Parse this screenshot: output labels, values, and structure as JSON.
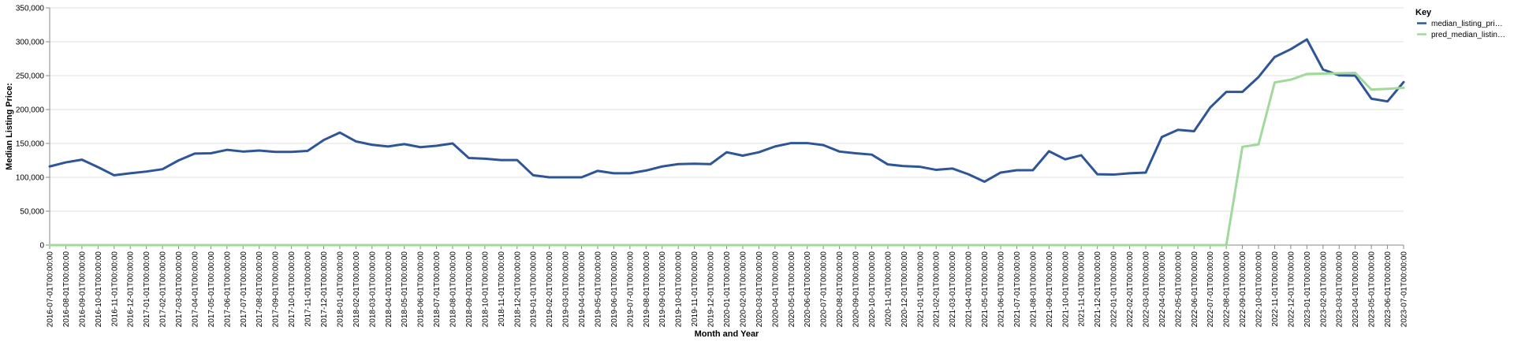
{
  "chart_data": {
    "type": "line",
    "xlabel": "Month and Year",
    "ylabel": "Median Listing Price:",
    "ylim": [
      0,
      350000
    ],
    "yticks": [
      "0",
      "50,000",
      "100,000",
      "150,000",
      "200,000",
      "250,000",
      "300,000",
      "350,000"
    ],
    "grid": "horizontal",
    "legend": {
      "title": "Key",
      "placement": "top-right",
      "items": [
        "median_listing_pri…",
        "pred_median_listin…"
      ]
    },
    "x": [
      "2016-07-01T00:00:00",
      "2016-08-01T00:00:00",
      "2016-09-01T00:00:00",
      "2016-10-01T00:00:00",
      "2016-11-01T00:00:00",
      "2016-12-01T00:00:00",
      "2017-01-01T00:00:00",
      "2017-02-01T00:00:00",
      "2017-03-01T00:00:00",
      "2017-04-01T00:00:00",
      "2017-05-01T00:00:00",
      "2017-06-01T00:00:00",
      "2017-07-01T00:00:00",
      "2017-08-01T00:00:00",
      "2017-09-01T00:00:00",
      "2017-10-01T00:00:00",
      "2017-11-01T00:00:00",
      "2017-12-01T00:00:00",
      "2018-01-01T00:00:00",
      "2018-02-01T00:00:00",
      "2018-03-01T00:00:00",
      "2018-04-01T00:00:00",
      "2018-05-01T00:00:00",
      "2018-06-01T00:00:00",
      "2018-07-01T00:00:00",
      "2018-08-01T00:00:00",
      "2018-09-01T00:00:00",
      "2018-10-01T00:00:00",
      "2018-11-01T00:00:00",
      "2018-12-01T00:00:00",
      "2019-01-01T00:00:00",
      "2019-02-01T00:00:00",
      "2019-03-01T00:00:00",
      "2019-04-01T00:00:00",
      "2019-05-01T00:00:00",
      "2019-06-01T00:00:00",
      "2019-07-01T00:00:00",
      "2019-08-01T00:00:00",
      "2019-09-01T00:00:00",
      "2019-10-01T00:00:00",
      "2019-11-01T00:00:00",
      "2019-12-01T00:00:00",
      "2020-01-01T00:00:00",
      "2020-02-01T00:00:00",
      "2020-03-01T00:00:00",
      "2020-04-01T00:00:00",
      "2020-05-01T00:00:00",
      "2020-06-01T00:00:00",
      "2020-07-01T00:00:00",
      "2020-08-01T00:00:00",
      "2020-09-01T00:00:00",
      "2020-10-01T00:00:00",
      "2020-11-01T00:00:00",
      "2020-12-01T00:00:00",
      "2021-01-01T00:00:00",
      "2021-02-01T00:00:00",
      "2021-03-01T00:00:00",
      "2021-04-01T00:00:00",
      "2021-05-01T00:00:00",
      "2021-06-01T00:00:00",
      "2021-07-01T00:00:00",
      "2021-08-01T00:00:00",
      "2021-09-01T00:00:00",
      "2021-10-01T00:00:00",
      "2021-11-01T00:00:00",
      "2021-12-01T00:00:00",
      "2022-01-01T00:00:00",
      "2022-02-01T00:00:00",
      "2022-03-01T00:00:00",
      "2022-04-01T00:00:00",
      "2022-05-01T00:00:00",
      "2022-06-01T00:00:00",
      "2022-07-01T00:00:00",
      "2022-08-01T00:00:00",
      "2022-09-01T00:00:00",
      "2022-10-01T00:00:00",
      "2022-11-01T00:00:00",
      "2022-12-01T00:00:00",
      "2023-01-01T00:00:00",
      "2023-02-01T00:00:00",
      "2023-03-01T00:00:00",
      "2023-04-01T00:00:00",
      "2023-05-01T00:00:00",
      "2023-06-01T00:00:00",
      "2023-07-01T00:00:00"
    ],
    "series": [
      {
        "name": "median_listing_pri…",
        "color": "#2e5597",
        "values": [
          116000,
          122000,
          126000,
          115000,
          103000,
          106000,
          108500,
          112000,
          125000,
          135000,
          135500,
          140500,
          138000,
          139500,
          137500,
          137500,
          139000,
          155000,
          166000,
          153000,
          148000,
          145500,
          149000,
          144500,
          146500,
          150000,
          128500,
          127500,
          125500,
          125500,
          103000,
          100000,
          100000,
          100000,
          109500,
          106000,
          106000,
          110000,
          116000,
          119500,
          120000,
          119500,
          137000,
          132000,
          137000,
          145500,
          150500,
          150500,
          147500,
          138000,
          135500,
          133500,
          119000,
          116500,
          115500,
          111000,
          113000,
          104500,
          93500,
          107000,
          110500,
          110500,
          138500,
          126500,
          132500,
          104500,
          104000,
          106000,
          107000,
          159500,
          170000,
          168000,
          203000,
          226000,
          226000,
          248000,
          277500,
          289000,
          303500,
          259000,
          250500,
          250000,
          216000,
          212000,
          240500
        ]
      },
      {
        "name": "pred_median_listin…",
        "color": "#a1d99b",
        "values": [
          0,
          0,
          0,
          0,
          0,
          0,
          0,
          0,
          0,
          0,
          0,
          0,
          0,
          0,
          0,
          0,
          0,
          0,
          0,
          0,
          0,
          0,
          0,
          0,
          0,
          0,
          0,
          0,
          0,
          0,
          0,
          0,
          0,
          0,
          0,
          0,
          0,
          0,
          0,
          0,
          0,
          0,
          0,
          0,
          0,
          0,
          0,
          0,
          0,
          0,
          0,
          0,
          0,
          0,
          0,
          0,
          0,
          0,
          0,
          0,
          0,
          0,
          0,
          0,
          0,
          0,
          0,
          0,
          0,
          0,
          0,
          0,
          0,
          0,
          145000,
          148500,
          240000,
          244000,
          252500,
          253000,
          253500,
          254000,
          229500,
          230500,
          232000
        ]
      }
    ]
  }
}
